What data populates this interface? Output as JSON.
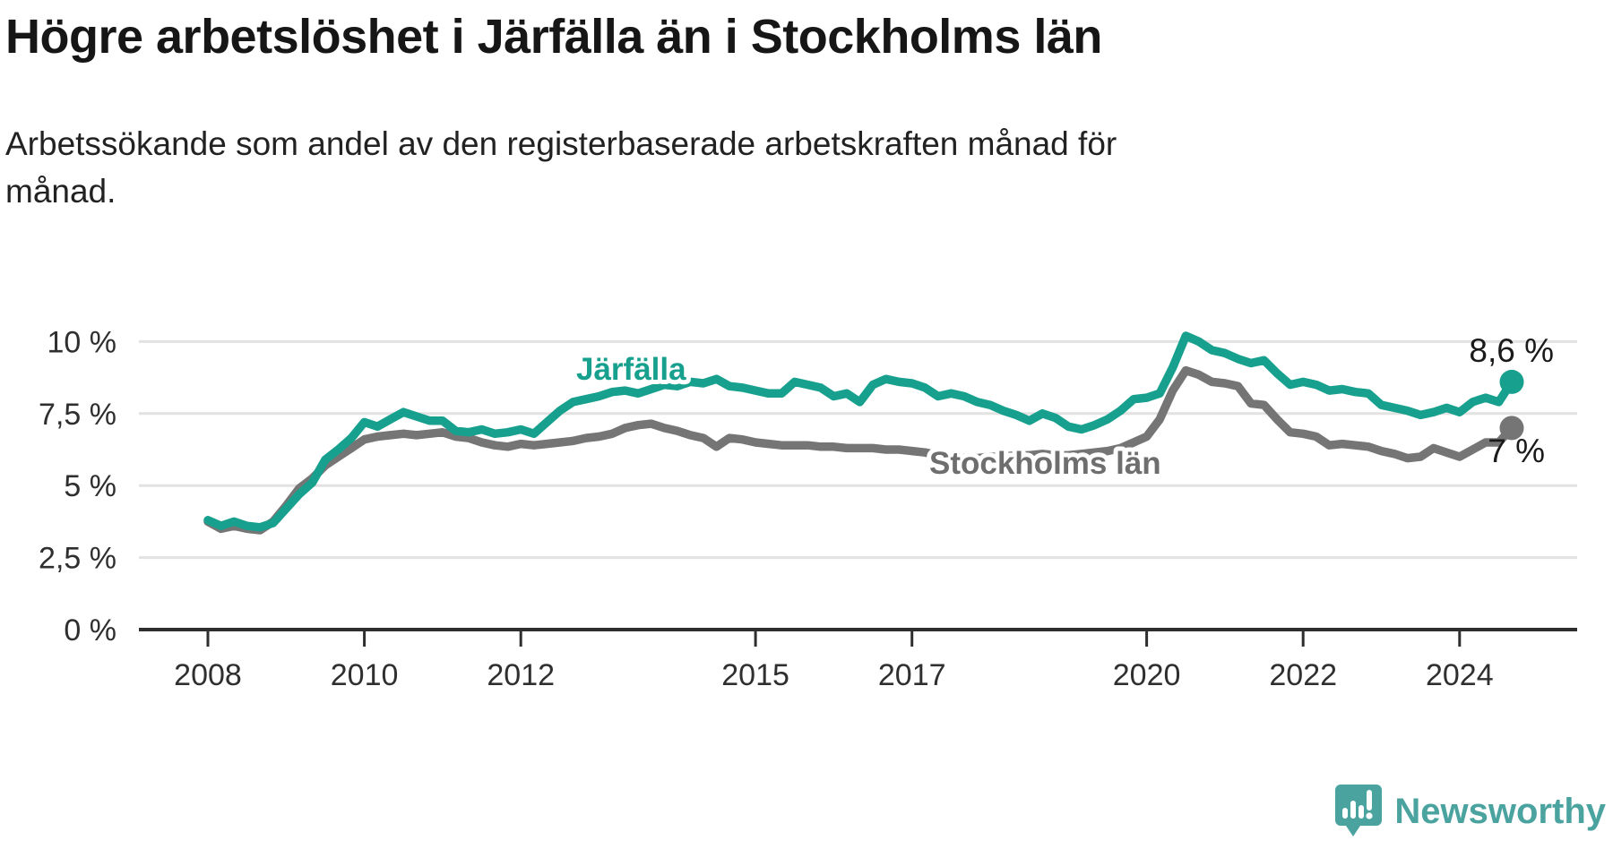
{
  "header": {
    "title": "Högre arbetslöshet i Järfälla än i Stockholms län",
    "subtitle_lines": [
      "Arbetssökande som andel av den registerbaserade arbetskraften månad för",
      "månad."
    ]
  },
  "chart_data": {
    "type": "line",
    "title": "Högre arbetslöshet i Järfälla än i Stockholms län",
    "unit": "percent of registered labour force",
    "grid": true,
    "legend_position": "inline-labels",
    "x_axis": {
      "start_year": 2008,
      "step_years": 0.1666667,
      "tick_years": [
        2008,
        2010,
        2012,
        2015,
        2017,
        2020,
        2022,
        2024
      ],
      "tick_labels": [
        "2008",
        "2010",
        "2012",
        "2015",
        "2017",
        "2020",
        "2022",
        "2024"
      ]
    },
    "y_axis": {
      "range": [
        0,
        10.7
      ],
      "tick_values": [
        0,
        2.5,
        5,
        7.5,
        10
      ],
      "tick_labels": [
        "0 %",
        "2,5 %",
        "5 %",
        "7,5 %",
        "10 %"
      ]
    },
    "series": [
      {
        "name": "Stockholms län",
        "color": "#757575",
        "label_color": "#6e6e6e",
        "end_label": "7 %",
        "end_value": 7.0,
        "values": [
          3.75,
          3.5,
          3.6,
          3.5,
          3.45,
          3.75,
          4.3,
          4.9,
          5.25,
          5.7,
          6.0,
          6.3,
          6.6,
          6.7,
          6.75,
          6.8,
          6.75,
          6.8,
          6.85,
          6.7,
          6.65,
          6.5,
          6.4,
          6.35,
          6.45,
          6.4,
          6.45,
          6.5,
          6.55,
          6.65,
          6.7,
          6.8,
          7.0,
          7.1,
          7.15,
          7.0,
          6.9,
          6.75,
          6.65,
          6.35,
          6.65,
          6.6,
          6.5,
          6.45,
          6.4,
          6.4,
          6.4,
          6.35,
          6.35,
          6.3,
          6.3,
          6.3,
          6.25,
          6.25,
          6.2,
          6.15,
          6.05,
          6.0,
          5.95,
          5.95,
          6.0,
          6.0,
          6.05,
          6.05,
          6.1,
          6.05,
          6.05,
          6.1,
          6.15,
          6.2,
          6.3,
          6.5,
          6.7,
          7.3,
          8.3,
          9.0,
          8.85,
          8.6,
          8.55,
          8.45,
          7.85,
          7.8,
          7.3,
          6.85,
          6.8,
          6.7,
          6.4,
          6.45,
          6.4,
          6.35,
          6.2,
          6.1,
          5.95,
          6.0,
          6.3,
          6.15,
          6.0,
          6.25,
          6.5,
          6.5,
          7.0
        ]
      },
      {
        "name": "Järfälla",
        "color": "#17A08D",
        "label_color": "#17A08D",
        "end_label": "8,6 %",
        "end_value": 8.6,
        "values": [
          3.8,
          3.6,
          3.75,
          3.6,
          3.55,
          3.7,
          4.2,
          4.7,
          5.1,
          5.9,
          6.25,
          6.65,
          7.2,
          7.05,
          7.3,
          7.55,
          7.4,
          7.25,
          7.25,
          6.9,
          6.85,
          6.95,
          6.8,
          6.85,
          6.95,
          6.8,
          7.2,
          7.6,
          7.9,
          8.0,
          8.1,
          8.25,
          8.3,
          8.2,
          8.35,
          8.5,
          8.45,
          8.6,
          8.55,
          8.7,
          8.45,
          8.4,
          8.3,
          8.2,
          8.2,
          8.6,
          8.5,
          8.4,
          8.1,
          8.2,
          7.9,
          8.5,
          8.7,
          8.6,
          8.55,
          8.4,
          8.1,
          8.2,
          8.1,
          7.9,
          7.8,
          7.6,
          7.45,
          7.25,
          7.5,
          7.35,
          7.05,
          6.95,
          7.1,
          7.3,
          7.6,
          8.0,
          8.05,
          8.2,
          9.1,
          10.2,
          10.0,
          9.7,
          9.6,
          9.4,
          9.25,
          9.35,
          8.9,
          8.5,
          8.6,
          8.5,
          8.3,
          8.35,
          8.25,
          8.2,
          7.8,
          7.7,
          7.6,
          7.45,
          7.55,
          7.7,
          7.55,
          7.9,
          8.05,
          7.9,
          8.6
        ]
      }
    ]
  },
  "branding": {
    "logo_text": "Newsworthy",
    "logo_color": "#4BA3A0",
    "icon": "speech-bubble-bar-chart-icon"
  }
}
